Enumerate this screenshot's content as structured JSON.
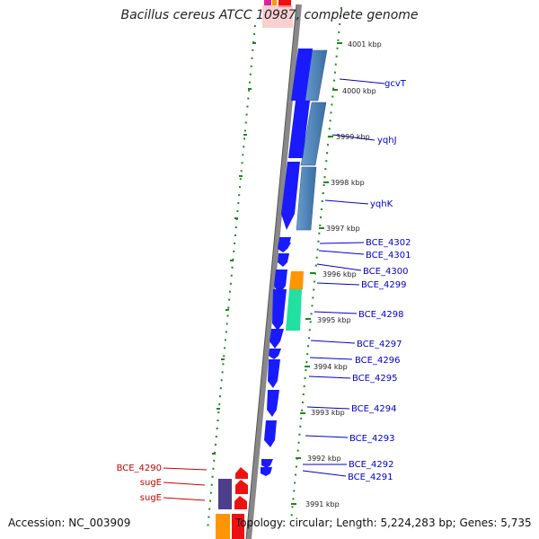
{
  "header": {
    "title": "Bacillus cereus ATCC 10987, complete genome"
  },
  "footer": {
    "accession": "Accession: NC_003909",
    "stats": "Topology: circular; Length: 5,224,283 bp; Genes: 5,735"
  },
  "ruler": {
    "kbp_labels": [
      "4001 kbp",
      "4000 kbp",
      "3999 kbp",
      "3998 kbp",
      "3997 kbp",
      "3996 kbp",
      "3995 kbp",
      "3994 kbp",
      "3993 kbp",
      "3992 kbp",
      "3991 kbp"
    ]
  },
  "genes": {
    "right_labels": [
      "gcvT",
      "yqhJ",
      "yqhK",
      "BCE_4302",
      "BCE_4301",
      "BCE_4300",
      "BCE_4299",
      "BCE_4298",
      "BCE_4297",
      "BCE_4296",
      "BCE_4295",
      "BCE_4294",
      "BCE_4293",
      "BCE_4292",
      "BCE_4291"
    ],
    "left_labels": [
      "BCE_4290",
      "sugE",
      "sugE"
    ]
  },
  "colors": {
    "forward_cds": "#1a1aff",
    "feature_blue": "#4f82b8",
    "reverse_cds": "#ee1111",
    "reverse_dark": "#4b3f8c",
    "orange": "#ff9500",
    "teal": "#22e0a0",
    "right_label": "#0000cc",
    "left_label": "#cc0000",
    "tick_green": "#1a8a1a",
    "backbone": "#888888"
  }
}
